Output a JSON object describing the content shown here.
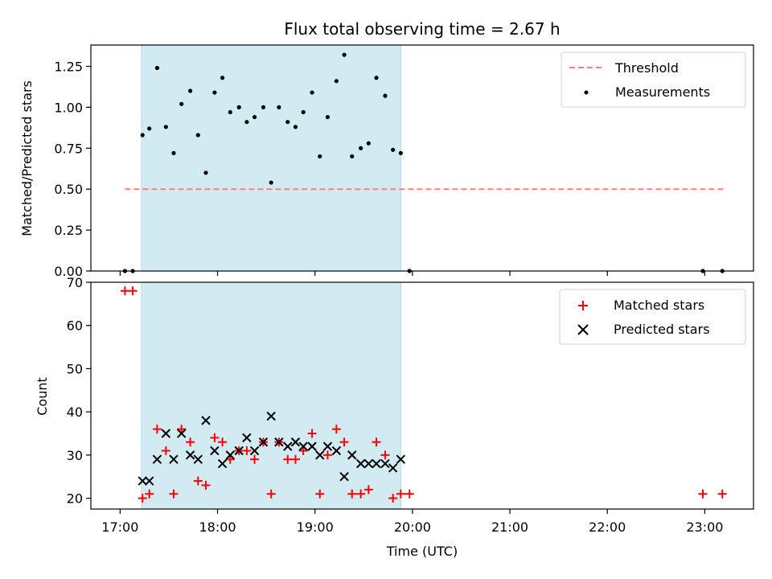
{
  "chart_data": {
    "title": "Flux total observing time = 2.67 h",
    "xlabel": "Time (UTC)",
    "x_ticks": [
      "17:00",
      "18:00",
      "19:00",
      "20:00",
      "21:00",
      "22:00",
      "23:00"
    ],
    "x_range_hours": [
      16.7,
      23.5
    ],
    "shaded_interval_hours": [
      17.22,
      19.88
    ],
    "shade_color": "#add8e6",
    "panels": [
      {
        "type": "scatter",
        "ylabel": "Matched/Predicted stars",
        "ylim": [
          0,
          1.38
        ],
        "yticks": [
          "0.00",
          "0.25",
          "0.50",
          "0.75",
          "1.00",
          "1.25"
        ],
        "threshold": {
          "name": "Threshold",
          "value": 0.5,
          "x_start": 17.05,
          "x_end": 23.2,
          "color": "#ff7f7f"
        },
        "series": [
          {
            "name": "Measurements",
            "color": "#000000",
            "points": [
              [
                17.05,
                0.0
              ],
              [
                17.13,
                0.0
              ],
              [
                17.23,
                0.83
              ],
              [
                17.3,
                0.87
              ],
              [
                17.38,
                1.24
              ],
              [
                17.47,
                0.88
              ],
              [
                17.55,
                0.72
              ],
              [
                17.63,
                1.02
              ],
              [
                17.72,
                1.1
              ],
              [
                17.8,
                0.83
              ],
              [
                17.88,
                0.6
              ],
              [
                17.97,
                1.09
              ],
              [
                18.05,
                1.18
              ],
              [
                18.13,
                0.97
              ],
              [
                18.22,
                1.0
              ],
              [
                18.3,
                0.91
              ],
              [
                18.38,
                0.94
              ],
              [
                18.47,
                1.0
              ],
              [
                18.55,
                0.54
              ],
              [
                18.63,
                1.0
              ],
              [
                18.72,
                0.91
              ],
              [
                18.8,
                0.88
              ],
              [
                18.88,
                0.97
              ],
              [
                18.97,
                1.09
              ],
              [
                19.05,
                0.7
              ],
              [
                19.13,
                0.94
              ],
              [
                19.22,
                1.16
              ],
              [
                19.3,
                1.32
              ],
              [
                19.38,
                0.7
              ],
              [
                19.47,
                0.75
              ],
              [
                19.55,
                0.78
              ],
              [
                19.63,
                1.18
              ],
              [
                19.72,
                1.07
              ],
              [
                19.8,
                0.74
              ],
              [
                19.88,
                0.72
              ],
              [
                19.97,
                0.0
              ],
              [
                22.98,
                0.0
              ],
              [
                23.18,
                0.0
              ]
            ]
          }
        ]
      },
      {
        "type": "scatter",
        "ylabel": "Count",
        "ylim": [
          17.5,
          70
        ],
        "yticks": [
          "20",
          "30",
          "40",
          "50",
          "60",
          "70"
        ],
        "series": [
          {
            "name": "Matched stars",
            "color": "#ff0000",
            "marker": "+",
            "points": [
              [
                17.05,
                68
              ],
              [
                17.13,
                68
              ],
              [
                17.23,
                20
              ],
              [
                17.3,
                21
              ],
              [
                17.38,
                36
              ],
              [
                17.47,
                31
              ],
              [
                17.55,
                21
              ],
              [
                17.63,
                36
              ],
              [
                17.72,
                33
              ],
              [
                17.8,
                24
              ],
              [
                17.88,
                23
              ],
              [
                17.97,
                34
              ],
              [
                18.05,
                33
              ],
              [
                18.13,
                29
              ],
              [
                18.22,
                31
              ],
              [
                18.3,
                31
              ],
              [
                18.38,
                29
              ],
              [
                18.47,
                33
              ],
              [
                18.55,
                21
              ],
              [
                18.63,
                33
              ],
              [
                18.72,
                29
              ],
              [
                18.8,
                29
              ],
              [
                18.88,
                31
              ],
              [
                18.97,
                35
              ],
              [
                19.05,
                21
              ],
              [
                19.13,
                30
              ],
              [
                19.22,
                36
              ],
              [
                19.3,
                33
              ],
              [
                19.38,
                21
              ],
              [
                19.47,
                21
              ],
              [
                19.55,
                22
              ],
              [
                19.63,
                33
              ],
              [
                19.72,
                30
              ],
              [
                19.8,
                20
              ],
              [
                19.88,
                21
              ],
              [
                19.97,
                21
              ],
              [
                22.98,
                21
              ],
              [
                23.18,
                21
              ]
            ]
          },
          {
            "name": "Predicted stars",
            "color": "#000000",
            "marker": "x",
            "points": [
              [
                17.23,
                24
              ],
              [
                17.3,
                24
              ],
              [
                17.38,
                29
              ],
              [
                17.47,
                35
              ],
              [
                17.55,
                29
              ],
              [
                17.63,
                35
              ],
              [
                17.72,
                30
              ],
              [
                17.8,
                29
              ],
              [
                17.88,
                38
              ],
              [
                17.97,
                31
              ],
              [
                18.05,
                28
              ],
              [
                18.13,
                30
              ],
              [
                18.22,
                31
              ],
              [
                18.3,
                34
              ],
              [
                18.38,
                31
              ],
              [
                18.47,
                33
              ],
              [
                18.55,
                39
              ],
              [
                18.63,
                33
              ],
              [
                18.72,
                32
              ],
              [
                18.8,
                33
              ],
              [
                18.88,
                32
              ],
              [
                18.97,
                32
              ],
              [
                19.05,
                30
              ],
              [
                19.13,
                32
              ],
              [
                19.22,
                31
              ],
              [
                19.3,
                25
              ],
              [
                19.38,
                30
              ],
              [
                19.47,
                28
              ],
              [
                19.55,
                28
              ],
              [
                19.63,
                28
              ],
              [
                19.72,
                28
              ],
              [
                19.8,
                27
              ],
              [
                19.88,
                29
              ]
            ]
          }
        ]
      }
    ]
  }
}
